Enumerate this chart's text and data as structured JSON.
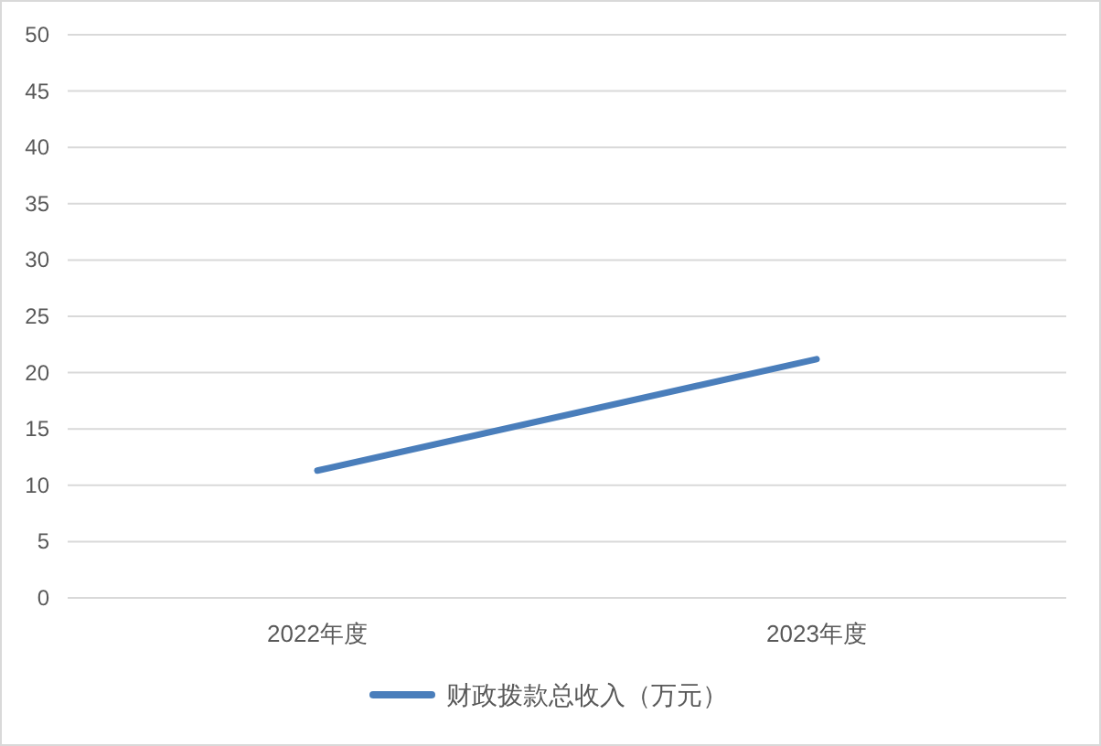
{
  "chart_data": {
    "type": "line",
    "categories": [
      "2022年度",
      "2023年度"
    ],
    "series": [
      {
        "name": "财政拨款总收入（万元）",
        "color": "#4a7ebb",
        "values": [
          11.3,
          21.2
        ]
      }
    ],
    "ylim": [
      0,
      50
    ],
    "yticks": [
      0,
      5,
      10,
      15,
      20,
      25,
      30,
      35,
      40,
      45,
      50
    ],
    "grid": "y",
    "legend": "bottom",
    "marker": "none",
    "line_style": "solid"
  }
}
